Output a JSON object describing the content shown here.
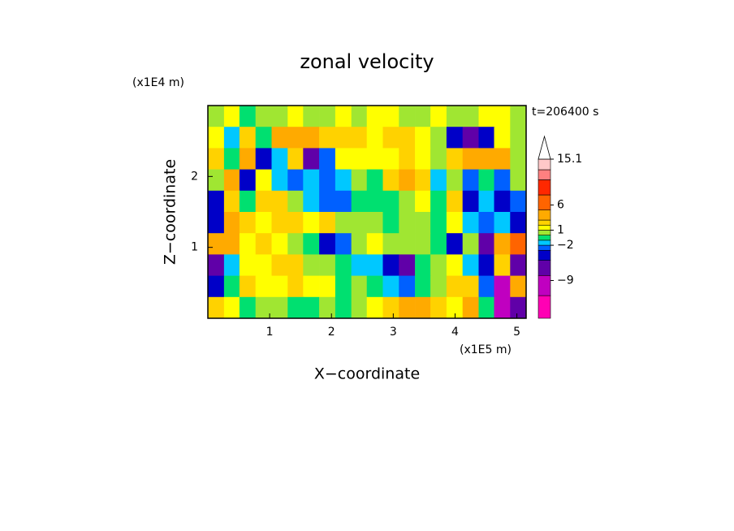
{
  "chart_data": {
    "type": "contour",
    "title": "zonal velocity",
    "y_unit": "(x1E4 m)",
    "x_unit": "(x1E5 m)",
    "time_label": "t=206400 s",
    "xlabel": "X−coordinate",
    "ylabel": "Z−coordinate",
    "xlim": [
      0,
      5.15
    ],
    "ylim": [
      0,
      3
    ],
    "xticks": [
      1,
      2,
      3,
      4,
      5
    ],
    "yticks": [
      1,
      2
    ],
    "x": [
      0.13,
      0.39,
      0.64,
      0.9,
      1.16,
      1.42,
      1.67,
      1.93,
      2.19,
      2.45,
      2.7,
      2.96,
      3.22,
      3.48,
      3.73,
      3.99,
      4.25,
      4.51,
      4.76,
      5.02
    ],
    "y": [
      2.85,
      2.55,
      2.25,
      1.95,
      1.65,
      1.35,
      1.05,
      0.75,
      0.45,
      0.15
    ],
    "z": [
      [
        0,
        1,
        -1,
        0,
        0,
        1,
        0,
        0,
        1,
        0,
        1,
        1,
        0,
        0,
        1,
        0,
        0,
        1,
        1,
        0
      ],
      [
        1,
        -2,
        2,
        -1,
        3,
        4,
        4,
        2,
        2,
        2,
        1,
        2,
        2,
        1,
        0,
        -5,
        -6,
        -5,
        1,
        0
      ],
      [
        2,
        -1,
        3,
        -4,
        -2,
        2,
        -6,
        -3,
        1,
        1,
        1,
        1,
        2,
        1,
        0,
        2,
        3,
        4,
        3,
        0
      ],
      [
        0,
        3,
        -4,
        1,
        -2,
        -3,
        -2,
        -3,
        -2,
        0,
        -1,
        2,
        3,
        2,
        -2,
        0,
        -3,
        -1,
        -3,
        0
      ],
      [
        -4,
        2,
        -1,
        2,
        2,
        0,
        -2,
        -3,
        -3,
        -1,
        -1,
        -1,
        0,
        1,
        -1,
        2,
        -4,
        -2,
        -5,
        -3
      ],
      [
        -5,
        3,
        2,
        1,
        2,
        2,
        1,
        2,
        0,
        0,
        0,
        -1,
        0,
        0,
        -1,
        1,
        -2,
        -3,
        -2,
        -4
      ],
      [
        4,
        3,
        1,
        2,
        1,
        0,
        -1,
        -4,
        -3,
        0,
        1,
        0,
        0,
        0,
        -1,
        -4,
        0,
        -6,
        3,
        6
      ],
      [
        -6,
        -2,
        1,
        1,
        2,
        2,
        0,
        0,
        -1,
        -2,
        -2,
        -5,
        -6,
        -1,
        0,
        1,
        -2,
        -5,
        2,
        -8
      ],
      [
        -4,
        -1,
        2,
        1,
        1,
        2,
        1,
        1,
        -1,
        0,
        -1,
        -2,
        -3,
        -1,
        0,
        2,
        2,
        -3,
        -9,
        3
      ],
      [
        2,
        1,
        -1,
        0,
        0,
        -1,
        -1,
        0,
        -1,
        0,
        1,
        2,
        3,
        3,
        2,
        1,
        3,
        -1,
        -12,
        -6
      ]
    ],
    "clim": [
      -16.5,
      15.1
    ],
    "levels": [
      -16.5,
      -12,
      -8,
      -5,
      -3,
      -2,
      -1,
      0,
      1,
      2,
      3,
      5,
      8,
      11,
      13,
      15.1
    ],
    "colors": [
      "#ff00b4",
      "#c000c0",
      "#6000a8",
      "#0000c8",
      "#0060ff",
      "#00c8ff",
      "#00e070",
      "#a0e632",
      "#ffff00",
      "#ffd200",
      "#ffaa00",
      "#ff6400",
      "#ff2800",
      "#ff8080",
      "#ffc8c8"
    ],
    "cticks": [
      {
        "value": 15.1,
        "label": "15.1"
      },
      6,
      1,
      {
        "value": -2,
        "label": "−2"
      },
      {
        "value": -9,
        "label": "−9"
      }
    ]
  }
}
